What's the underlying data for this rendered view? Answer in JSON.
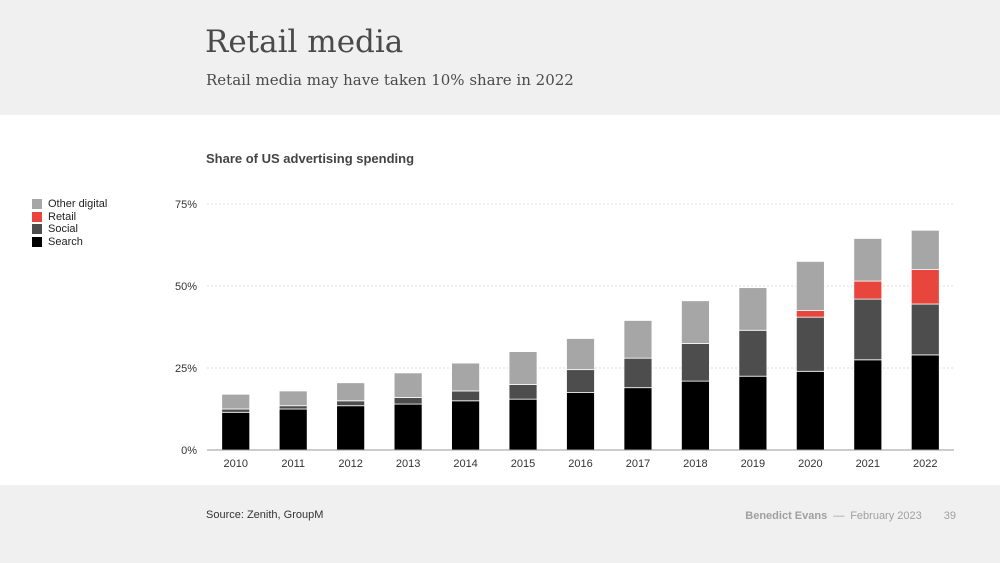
{
  "slide": {
    "title": "Retail media",
    "subtitle": "Retail media may have taken 10% share in 2022",
    "source": "Source: Zenith, GroupM",
    "author": "Benedict Evans",
    "separator": "—",
    "date": "February 2023",
    "page": "39"
  },
  "colors": {
    "search": "#000000",
    "social": "#4d4d4d",
    "retail": "#e8453c",
    "other_digital": "#a6a6a6",
    "gridline": "#dddddd",
    "baseline": "#999999",
    "background_band": "#f0f0f0"
  },
  "chart_data": {
    "type": "bar",
    "stacked": true,
    "title": "Share of US advertising spending",
    "categories": [
      "2010",
      "2011",
      "2012",
      "2013",
      "2014",
      "2015",
      "2016",
      "2017",
      "2018",
      "2019",
      "2020",
      "2021",
      "2022"
    ],
    "series": [
      {
        "name": "Search",
        "color": "#000000",
        "values": [
          11.5,
          12.5,
          13.5,
          14,
          15,
          15.5,
          17.5,
          19,
          21,
          22.5,
          24,
          27.5,
          29
        ]
      },
      {
        "name": "Social",
        "color": "#4d4d4d",
        "values": [
          1,
          1,
          1.5,
          2,
          3,
          4.5,
          7,
          9,
          11.5,
          14,
          16.5,
          18.5,
          15.5
        ]
      },
      {
        "name": "Retail",
        "color": "#e8453c",
        "values": [
          0,
          0,
          0,
          0,
          0,
          0,
          0,
          0,
          0,
          0,
          2,
          5.5,
          10.5
        ]
      },
      {
        "name": "Other digital",
        "color": "#a6a6a6",
        "values": [
          4.5,
          4.5,
          5.5,
          7.5,
          8.5,
          10,
          9.5,
          11.5,
          13,
          13,
          15,
          13,
          12
        ]
      }
    ],
    "y_ticks": [
      "0%",
      "25%",
      "50%",
      "75%"
    ],
    "ylim": [
      0,
      75
    ],
    "grid": true,
    "legend_position": "left"
  }
}
